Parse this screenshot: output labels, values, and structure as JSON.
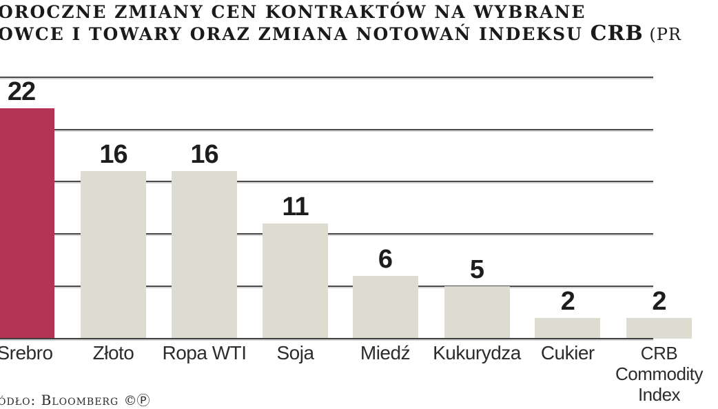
{
  "title": {
    "line1": "OROCZNE ZMIANY CEN KONTRAKTÓW NA WYBRANE",
    "line2_prefix": "OWCE I TOWARY ORAZ ZMIANA NOTOWAŃ INDEKSU ",
    "line2_crb": "CRB",
    "line2_suffix": " (PR"
  },
  "source": {
    "label": "ódło: Bloomberg",
    "symbols": "©Ⓟ"
  },
  "colors": {
    "highlight_bar": "#b43453",
    "default_bar": "#dedcd1",
    "gridline": "#4a4a4a",
    "axis_line": "#3e3e3e",
    "title_text": "#1a1a1a",
    "label_text": "#2c2c2c"
  },
  "chart_data": {
    "type": "bar",
    "title": "OROCZNE ZMIANY CEN KONTRAKTÓW NA WYBRANE OWCE I TOWARY ORAZ ZMIANA NOTOWAŃ INDEKSU CRB (PR",
    "categories": [
      "Srebro",
      "Złoto",
      "Ropa WTI",
      "Soja",
      "Miedź",
      "Kukurydza",
      "Cukier",
      "CRB Commodity Index"
    ],
    "category_display_lines": [
      [
        "Srebro"
      ],
      [
        "Złoto"
      ],
      [
        "Ropa WTI"
      ],
      [
        "Soja"
      ],
      [
        "Miedź"
      ],
      [
        "Kukurydza"
      ],
      [
        "Cukier"
      ],
      [
        "CRB",
        "Commodity",
        "Index"
      ]
    ],
    "values": [
      22,
      16,
      16,
      11,
      6,
      5,
      2,
      2
    ],
    "value_labels": [
      "22",
      "16",
      "16",
      "11",
      "6",
      "5",
      "2",
      "2"
    ],
    "highlighted_index": 0,
    "ylim": [
      0,
      25
    ],
    "gridline_values": [
      25,
      20,
      15,
      10,
      5,
      0
    ],
    "grid": true,
    "legend": false,
    "xlabel": "",
    "ylabel": ""
  }
}
